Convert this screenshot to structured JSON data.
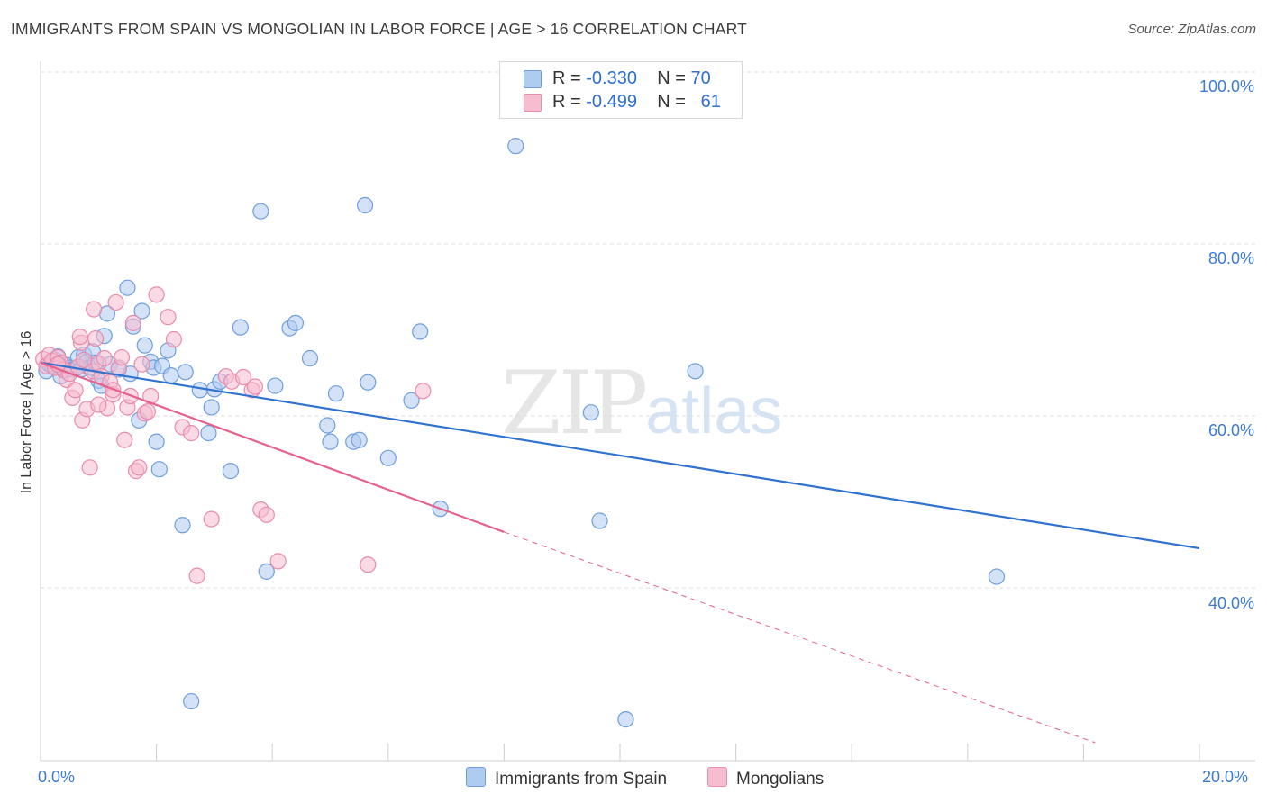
{
  "header": {
    "title": "IMMIGRANTS FROM SPAIN VS MONGOLIAN IN LABOR FORCE | AGE > 16 CORRELATION CHART",
    "source": "Source: ZipAtlas.com"
  },
  "watermark": {
    "zip": "ZIP",
    "atlas": "atlas"
  },
  "legend": {
    "rows": [
      {
        "r_label": "R = ",
        "r_value": "-0.330",
        "n_label": "N = ",
        "n_value": "70",
        "color": "#a9c8ee"
      },
      {
        "r_label": "R = ",
        "r_value": "-0.499",
        "n_label": "N = ",
        "n_value": "61",
        "color": "#f5b6cb"
      }
    ]
  },
  "bottom_legend": {
    "spain": "Immigrants from Spain",
    "mongolians": "Mongolians"
  },
  "colors": {
    "spain_fill": "#aecbf0",
    "spain_stroke": "#6f9fdc",
    "spain_line": "#2f72d0",
    "mong_fill": "#f6bcd0",
    "mong_stroke": "#e98bac",
    "mong_line": "#e5628e",
    "grid": "#dddddd",
    "tick_text": "#3b7bd4"
  },
  "chart_data": {
    "type": "scatter",
    "title": "IMMIGRANTS FROM SPAIN VS MONGOLIAN IN LABOR FORCE | AGE > 16 CORRELATION CHART",
    "xlabel": "",
    "ylabel": "In Labor Force | Age > 16",
    "xlim": [
      0,
      20
    ],
    "ylim": [
      22,
      104
    ],
    "x_tick_labels": [
      "0.0%",
      "20.0%"
    ],
    "y_ticks": [
      40,
      60,
      80,
      100
    ],
    "y_tick_labels": [
      "40.0%",
      "60.0%",
      "80.0%",
      "100.0%"
    ],
    "grid": true,
    "series": [
      {
        "name": "Immigrants from Spain",
        "r": -0.33,
        "n": 70,
        "trend": {
          "x0": 0,
          "y0": 66.2,
          "x1": 20,
          "y1": 44.6
        },
        "points": [
          [
            0.1,
            65.2
          ],
          [
            0.15,
            66.0
          ],
          [
            0.2,
            65.8
          ],
          [
            0.25,
            66.5
          ],
          [
            0.3,
            66.9
          ],
          [
            0.35,
            64.6
          ],
          [
            0.4,
            65.3
          ],
          [
            0.45,
            65.9
          ],
          [
            0.5,
            65.6
          ],
          [
            0.55,
            65.4
          ],
          [
            0.6,
            65.5
          ],
          [
            0.65,
            66.8
          ],
          [
            0.7,
            65.4
          ],
          [
            0.75,
            67.1
          ],
          [
            0.8,
            66.3
          ],
          [
            0.85,
            65.6
          ],
          [
            0.9,
            67.5
          ],
          [
            0.95,
            66.2
          ],
          [
            1.0,
            64.1
          ],
          [
            1.05,
            63.5
          ],
          [
            1.1,
            69.3
          ],
          [
            1.15,
            71.9
          ],
          [
            1.2,
            66.0
          ],
          [
            1.35,
            65.4
          ],
          [
            1.5,
            74.9
          ],
          [
            1.55,
            64.9
          ],
          [
            1.6,
            70.4
          ],
          [
            1.7,
            59.5
          ],
          [
            1.75,
            72.2
          ],
          [
            1.8,
            68.2
          ],
          [
            1.9,
            66.3
          ],
          [
            1.95,
            65.6
          ],
          [
            2.0,
            57.0
          ],
          [
            2.1,
            65.8
          ],
          [
            2.05,
            53.8
          ],
          [
            2.2,
            67.6
          ],
          [
            2.25,
            64.7
          ],
          [
            2.45,
            47.3
          ],
          [
            2.5,
            65.1
          ],
          [
            2.75,
            63.0
          ],
          [
            2.9,
            58.0
          ],
          [
            2.95,
            61.0
          ],
          [
            3.0,
            63.1
          ],
          [
            3.1,
            64.0
          ],
          [
            3.28,
            53.6
          ],
          [
            3.45,
            70.3
          ],
          [
            3.8,
            83.8
          ],
          [
            3.9,
            41.9
          ],
          [
            4.05,
            63.5
          ],
          [
            4.3,
            70.2
          ],
          [
            4.4,
            70.8
          ],
          [
            4.65,
            66.7
          ],
          [
            4.95,
            58.9
          ],
          [
            5.0,
            57.0
          ],
          [
            5.1,
            62.6
          ],
          [
            5.4,
            57.0
          ],
          [
            5.5,
            57.2
          ],
          [
            5.6,
            84.5
          ],
          [
            5.65,
            63.9
          ],
          [
            6.0,
            55.1
          ],
          [
            6.4,
            61.8
          ],
          [
            6.55,
            69.8
          ],
          [
            6.9,
            49.2
          ],
          [
            8.2,
            91.4
          ],
          [
            9.5,
            60.4
          ],
          [
            9.65,
            47.8
          ],
          [
            10.1,
            24.7
          ],
          [
            11.3,
            65.2
          ],
          [
            16.5,
            41.3
          ],
          [
            2.6,
            26.8
          ]
        ]
      },
      {
        "name": "Mongolians",
        "r": -0.499,
        "n": 61,
        "trend": {
          "x0": 0,
          "y0": 66.2,
          "x1": 8.0,
          "y1": 46.5,
          "x_dash_end": 18.2,
          "y_dash_end": 22
        },
        "points": [
          [
            0.05,
            66.6
          ],
          [
            0.1,
            65.8
          ],
          [
            0.15,
            67.1
          ],
          [
            0.2,
            66.4
          ],
          [
            0.25,
            65.6
          ],
          [
            0.3,
            66.8
          ],
          [
            0.35,
            66.2
          ],
          [
            0.4,
            65.4
          ],
          [
            0.45,
            64.2
          ],
          [
            0.5,
            64.9
          ],
          [
            0.55,
            62.1
          ],
          [
            0.6,
            63.0
          ],
          [
            0.65,
            65.7
          ],
          [
            0.7,
            68.5
          ],
          [
            0.72,
            59.5
          ],
          [
            0.75,
            66.5
          ],
          [
            0.8,
            60.8
          ],
          [
            0.85,
            54.0
          ],
          [
            0.9,
            65.2
          ],
          [
            0.92,
            72.4
          ],
          [
            0.95,
            69.0
          ],
          [
            1.0,
            66.1
          ],
          [
            1.05,
            64.6
          ],
          [
            1.1,
            66.7
          ],
          [
            1.15,
            60.9
          ],
          [
            1.2,
            63.9
          ],
          [
            1.25,
            62.5
          ],
          [
            1.3,
            73.2
          ],
          [
            1.35,
            65.6
          ],
          [
            1.4,
            66.8
          ],
          [
            1.45,
            57.2
          ],
          [
            1.5,
            61.0
          ],
          [
            1.55,
            62.3
          ],
          [
            1.6,
            70.8
          ],
          [
            1.65,
            53.6
          ],
          [
            1.7,
            54.0
          ],
          [
            1.75,
            66.0
          ],
          [
            1.8,
            60.3
          ],
          [
            1.85,
            60.5
          ],
          [
            1.9,
            62.3
          ],
          [
            2.0,
            74.1
          ],
          [
            2.2,
            71.5
          ],
          [
            2.3,
            68.9
          ],
          [
            2.45,
            58.7
          ],
          [
            2.6,
            58.0
          ],
          [
            2.7,
            41.4
          ],
          [
            2.95,
            48.0
          ],
          [
            3.2,
            64.6
          ],
          [
            3.3,
            64.0
          ],
          [
            3.5,
            64.5
          ],
          [
            3.65,
            63.0
          ],
          [
            3.7,
            63.4
          ],
          [
            3.8,
            49.1
          ],
          [
            3.9,
            48.5
          ],
          [
            4.1,
            43.1
          ],
          [
            5.65,
            42.7
          ],
          [
            6.6,
            62.9
          ],
          [
            1.0,
            61.3
          ],
          [
            0.68,
            69.2
          ],
          [
            1.25,
            63.0
          ],
          [
            0.3,
            66.0
          ]
        ]
      }
    ]
  }
}
